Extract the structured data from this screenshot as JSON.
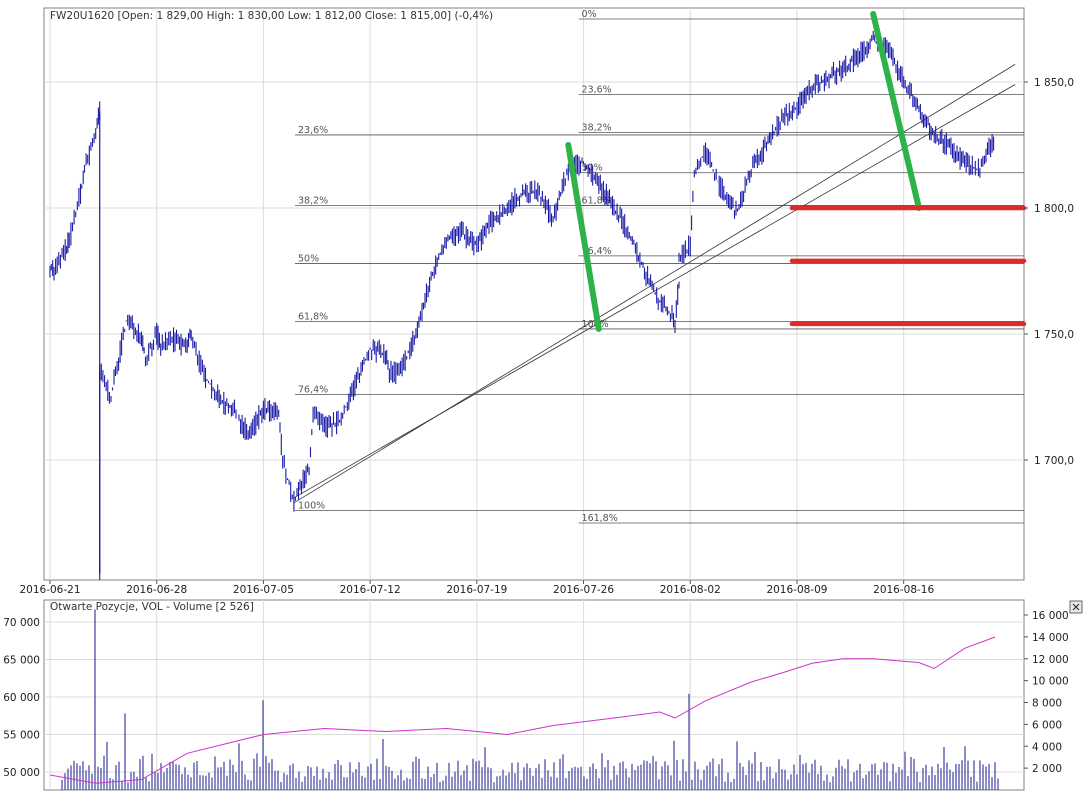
{
  "header": {
    "legend_text": "FW20U1620 [Open: 1 829,00  High: 1 830,00  Low: 1 812,00  Close: 1 815,00] (-0,4%)"
  },
  "volume_panel": {
    "legend_text": "Otwarte Pozycje, VOL - Volume [2 526]",
    "close_icon": "close-x-icon"
  },
  "chart_data": [
    {
      "type": "candlestick",
      "symbol": "FW20U1620",
      "ohlc_last": {
        "open": 1829.0,
        "high": 1830.0,
        "low": 1812.0,
        "close": 1815.0,
        "change_pct": -0.4
      },
      "y_ticks": [
        {
          "value": 1850,
          "label": "1 850,0"
        },
        {
          "value": 1800,
          "label": "1 800,0"
        },
        {
          "value": 1750,
          "label": "1 750,0"
        },
        {
          "value": 1700,
          "label": "1 700,0"
        }
      ],
      "x_ticks": [
        "2016-06-21",
        "2016-06-28",
        "2016-07-05",
        "2016-07-12",
        "2016-07-19",
        "2016-07-26",
        "2016-08-02",
        "2016-08-09",
        "2016-08-16"
      ],
      "grid": true,
      "price_path": [
        [
          "2016-06-21",
          1777
        ],
        [
          "2016-06-21",
          1775
        ],
        [
          "2016-06-22",
          1783
        ],
        [
          "2016-06-22",
          1787
        ],
        [
          "2016-06-23",
          1806
        ],
        [
          "2016-06-23",
          1815
        ],
        [
          "2016-06-24",
          1830
        ],
        [
          "2016-06-24",
          1838
        ],
        [
          "2016-06-24",
          1655
        ],
        [
          "2016-06-24",
          1735
        ],
        [
          "2016-06-25",
          1725
        ],
        [
          "2016-06-26",
          1755
        ],
        [
          "2016-06-27",
          1750
        ],
        [
          "2016-06-27",
          1740
        ],
        [
          "2016-06-28",
          1750
        ],
        [
          "2016-06-28",
          1745
        ],
        [
          "2016-06-29",
          1748
        ],
        [
          "2016-06-30",
          1745
        ],
        [
          "2016-06-30",
          1750
        ],
        [
          "2016-07-01",
          1735
        ],
        [
          "2016-07-02",
          1725
        ],
        [
          "2016-07-03",
          1720
        ],
        [
          "2016-07-04",
          1710
        ],
        [
          "2016-07-05",
          1720
        ],
        [
          "2016-07-06",
          1718
        ],
        [
          "2016-07-06",
          1700
        ],
        [
          "2016-07-07",
          1683
        ],
        [
          "2016-07-08",
          1697
        ],
        [
          "2016-07-08",
          1718
        ],
        [
          "2016-07-09",
          1713
        ],
        [
          "2016-07-10",
          1715
        ],
        [
          "2016-07-11",
          1730
        ],
        [
          "2016-07-12",
          1744
        ],
        [
          "2016-07-13",
          1742
        ],
        [
          "2016-07-13",
          1735
        ],
        [
          "2016-07-14",
          1735
        ],
        [
          "2016-07-15",
          1750
        ],
        [
          "2016-07-16",
          1772
        ],
        [
          "2016-07-17",
          1788
        ],
        [
          "2016-07-18",
          1790
        ],
        [
          "2016-07-19",
          1785
        ],
        [
          "2016-07-20",
          1795
        ],
        [
          "2016-07-21",
          1800
        ],
        [
          "2016-07-22",
          1806
        ],
        [
          "2016-07-23",
          1806
        ],
        [
          "2016-07-24",
          1796
        ],
        [
          "2016-07-25",
          1815
        ],
        [
          "2016-07-26",
          1818
        ],
        [
          "2016-07-27",
          1810
        ],
        [
          "2016-07-28",
          1800
        ],
        [
          "2016-07-29",
          1790
        ],
        [
          "2016-07-30",
          1775
        ],
        [
          "2016-07-31",
          1763
        ],
        [
          "2016-08-01",
          1755
        ],
        [
          "2016-08-01",
          1770
        ],
        [
          "2016-08-01",
          1780
        ],
        [
          "2016-08-02",
          1785
        ],
        [
          "2016-08-02",
          1815
        ],
        [
          "2016-08-03",
          1822
        ],
        [
          "2016-08-04",
          1808
        ],
        [
          "2016-08-05",
          1798
        ],
        [
          "2016-08-06",
          1815
        ],
        [
          "2016-08-07",
          1825
        ],
        [
          "2016-08-08",
          1835
        ],
        [
          "2016-08-09",
          1840
        ],
        [
          "2016-08-10",
          1848
        ],
        [
          "2016-08-11",
          1852
        ],
        [
          "2016-08-12",
          1855
        ],
        [
          "2016-08-13",
          1860
        ],
        [
          "2016-08-14",
          1867
        ],
        [
          "2016-08-15",
          1862
        ],
        [
          "2016-08-16",
          1850
        ],
        [
          "2016-08-17",
          1840
        ],
        [
          "2016-08-18",
          1828
        ],
        [
          "2016-08-19",
          1825
        ],
        [
          "2016-08-20",
          1818
        ],
        [
          "2016-08-21",
          1815
        ],
        [
          "2016-08-22",
          1829
        ]
      ],
      "trendlines": [
        {
          "from": [
            "2016-07-07",
            1683
          ],
          "to": [
            "2016-08-22",
            1857
          ]
        },
        {
          "from": [
            "2016-07-07",
            1685
          ],
          "to": [
            "2016-08-22",
            1849
          ]
        }
      ],
      "fibonacci_sets": [
        {
          "levels": [
            {
              "label": "23,6%",
              "value": 1829
            },
            {
              "label": "38,2%",
              "value": 1801
            },
            {
              "label": "50%",
              "value": 1778
            },
            {
              "label": "61,8%",
              "value": 1755
            },
            {
              "label": "76,4%",
              "value": 1726
            },
            {
              "label": "100%",
              "value": 1680
            }
          ]
        },
        {
          "levels": [
            {
              "label": "0%",
              "value": 1875
            },
            {
              "label": "23,6%",
              "value": 1845
            },
            {
              "label": "38,2%",
              "value": 1830
            },
            {
              "label": "50%",
              "value": 1814
            },
            {
              "label": "61,8%",
              "value": 1801
            },
            {
              "label": "76,4%",
              "value": 1781
            },
            {
              "label": "100%",
              "value": 1752
            },
            {
              "label": "161,8%",
              "value": 1675
            }
          ]
        }
      ],
      "annotation_lines": [
        {
          "color": "#2db34a",
          "from": [
            "2016-07-25",
            1825
          ],
          "to": [
            "2016-07-27",
            1752
          ]
        },
        {
          "color": "#2db34a",
          "from": [
            "2016-08-14",
            1877
          ],
          "to": [
            "2016-08-17",
            1800
          ]
        }
      ],
      "support_lines": [
        {
          "color": "#e02a2a",
          "value": 1800,
          "from_date": "2016-08-09"
        },
        {
          "color": "#e02a2a",
          "value": 1779,
          "from_date": "2016-08-09"
        },
        {
          "color": "#e02a2a",
          "value": 1754,
          "from_date": "2016-08-09"
        }
      ],
      "series_color": "#1a1aa6"
    },
    {
      "type": "bar+line",
      "y_ticks_left": [
        {
          "value": 70000,
          "label": "70 000"
        },
        {
          "value": 65000,
          "label": "65 000"
        },
        {
          "value": 60000,
          "label": "60 000"
        },
        {
          "value": 55000,
          "label": "55 000"
        },
        {
          "value": 50000,
          "label": "50 000"
        }
      ],
      "y_ticks_right": [
        {
          "value": 16000,
          "label": "16 000"
        },
        {
          "value": 14000,
          "label": "14 000"
        },
        {
          "value": 12000,
          "label": "12 000"
        },
        {
          "value": 10000,
          "label": "10 000"
        },
        {
          "value": 8000,
          "label": "8 000"
        },
        {
          "value": 6000,
          "label": "6 000"
        },
        {
          "value": 4000,
          "label": "4 000"
        },
        {
          "value": 2000,
          "label": "2 000"
        }
      ],
      "volume_spikes": [
        {
          "date": "2016-06-24",
          "value": 16500
        },
        {
          "date": "2016-06-26",
          "value": 7000
        },
        {
          "date": "2016-07-05",
          "value": 8200
        },
        {
          "date": "2016-08-02",
          "value": 8800
        },
        {
          "date": "2016-08-01",
          "value": 4500
        },
        {
          "date": "2016-08-20",
          "value": 4000
        }
      ],
      "open_interest": [
        [
          "2016-06-21",
          49600
        ],
        [
          "2016-06-24",
          48500
        ],
        [
          "2016-06-27",
          49000
        ],
        [
          "2016-06-30",
          52500
        ],
        [
          "2016-07-03",
          54000
        ],
        [
          "2016-07-05",
          55000
        ],
        [
          "2016-07-09",
          55800
        ],
        [
          "2016-07-13",
          55400
        ],
        [
          "2016-07-17",
          55800
        ],
        [
          "2016-07-21",
          55000
        ],
        [
          "2016-07-24",
          56200
        ],
        [
          "2016-07-28",
          57200
        ],
        [
          "2016-07-31",
          58000
        ],
        [
          "2016-08-01",
          57200
        ],
        [
          "2016-08-03",
          59500
        ],
        [
          "2016-08-06",
          62000
        ],
        [
          "2016-08-08",
          63200
        ],
        [
          "2016-08-10",
          64500
        ],
        [
          "2016-08-12",
          65100
        ],
        [
          "2016-08-14",
          65100
        ],
        [
          "2016-08-17",
          64600
        ],
        [
          "2016-08-18",
          63800
        ],
        [
          "2016-08-20",
          66500
        ],
        [
          "2016-08-22",
          68000
        ]
      ],
      "bar_color": "#1a1a8c",
      "line_color": "#cc33cc",
      "grid": true
    }
  ]
}
